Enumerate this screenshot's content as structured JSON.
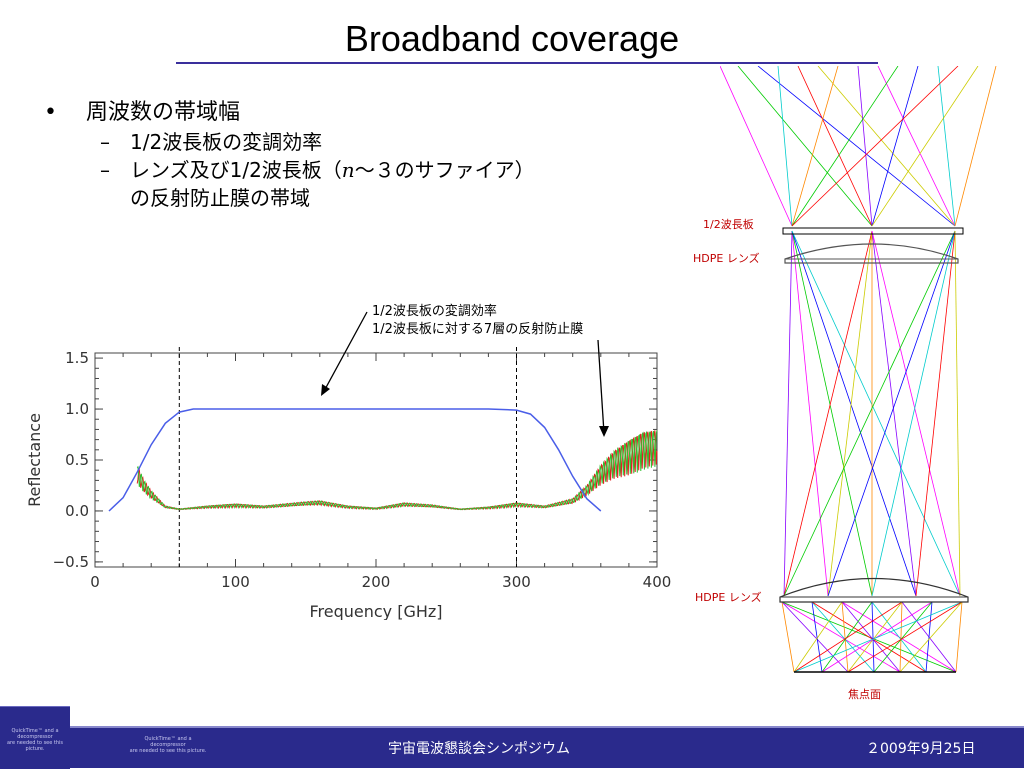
{
  "slide": {
    "title": "Broadband coverage",
    "bullet1": "周波数の帯域幅",
    "sub1": "1/2波長板の変調効率",
    "sub2_a": "レンズ及び1/2波長板（",
    "sub2_n": "n",
    "sub2_b": "〜３のサファイア）",
    "sub2_c": "の反射防止膜の帯域",
    "dot": "•",
    "dash": "–"
  },
  "annotations": {
    "line1": "1/2波長板の変調効率",
    "line2": "1/2波長板に対する7層の反射防止膜"
  },
  "optics": {
    "hwp_label": "1/2波長板",
    "lens1_label": "HDPE レンズ",
    "lens2_label": "HDPE レンズ",
    "focal_label": "焦点面",
    "ray_colors": [
      "#ff00ff",
      "#00cc00",
      "#0000ff",
      "#00cccc",
      "#ff0000",
      "#cccc00",
      "#ff8800",
      "#8800ff"
    ]
  },
  "footer": {
    "center": "宇宙電波懇談会シンポジウム",
    "date": "２009年9月25日",
    "logo_l1": "QuickTime™ and a",
    "logo_l2": "decompressor",
    "logo_l3": "are needed to see this picture.",
    "mid_l1": "QuickTime™ and a",
    "mid_l2": "decompressor",
    "mid_l3": "are needed to see this picture."
  },
  "chart_data": {
    "type": "line",
    "xlabel": "Frequency [GHz]",
    "ylabel": "Reflectance",
    "xlim": [
      0,
      400
    ],
    "ylim": [
      -0.55,
      1.55
    ],
    "xticks": [
      0,
      100,
      200,
      300,
      400
    ],
    "yticks": [
      -0.5,
      0.0,
      0.5,
      1.0,
      1.5
    ],
    "xtick_labels": [
      "0",
      "100",
      "200",
      "300",
      "400"
    ],
    "ytick_labels": [
      "−0.5",
      "0.0",
      "0.5",
      "1.0",
      "1.5"
    ],
    "vlines": [
      60,
      300
    ],
    "colors": {
      "modulation": "#4a5ee8",
      "ar_red": "#e02020",
      "ar_green": "#30c030"
    },
    "series": [
      {
        "x": [
          10,
          20,
          30,
          40,
          50,
          60,
          70,
          80,
          100,
          150,
          200,
          250,
          280,
          300,
          310,
          320,
          330,
          340,
          350,
          360
        ],
        "values": [
          0.0,
          0.13,
          0.38,
          0.65,
          0.86,
          0.97,
          1.0,
          1.0,
          1.0,
          1.0,
          1.0,
          1.0,
          1.0,
          0.99,
          0.95,
          0.82,
          0.6,
          0.34,
          0.12,
          0.0
        ]
      },
      {
        "x": [
          30,
          35,
          40,
          50,
          60,
          80,
          100,
          120,
          150,
          160,
          180,
          200,
          220,
          240,
          260,
          280,
          300,
          320,
          340,
          350,
          360,
          370,
          380,
          390,
          400
        ],
        "values": [
          0.45,
          0.3,
          0.2,
          0.05,
          0.02,
          0.05,
          0.07,
          0.05,
          0.09,
          0.1,
          0.05,
          0.03,
          0.08,
          0.06,
          0.02,
          0.04,
          0.08,
          0.05,
          0.12,
          0.25,
          0.45,
          0.6,
          0.7,
          0.78,
          0.8
        ]
      }
    ]
  }
}
